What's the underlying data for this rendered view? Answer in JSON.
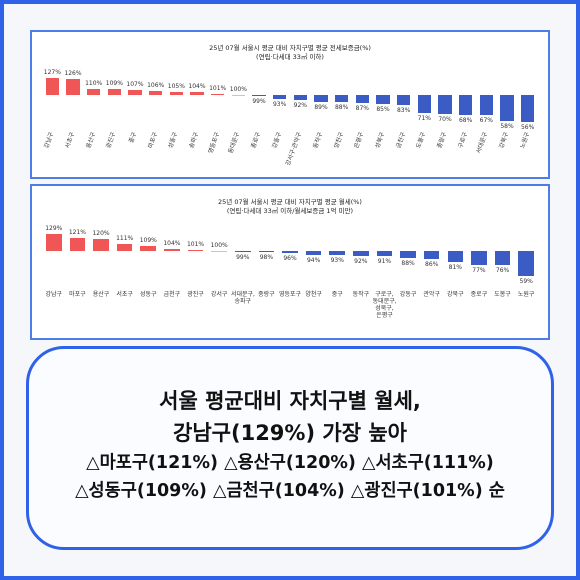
{
  "chart_data": [
    {
      "type": "bar",
      "title": "25년 07월 서울시 평균 대비 자치구별 평균 전세보증금(%)",
      "subtitle": "(연립·다세대 33㎡ 이하)",
      "categories": [
        "강남구",
        "서초구",
        "용산구",
        "광진구",
        "중구",
        "마포구",
        "성동구",
        "송파구",
        "영등포구",
        "동대문구",
        "종로구",
        "강동구",
        "강서구·관악구",
        "동작구",
        "양천구",
        "은평구",
        "성북구",
        "금천구",
        "도봉구",
        "중랑구",
        "구로구",
        "서대문구",
        "강북구",
        "노원구"
      ],
      "values": [
        127,
        126,
        110,
        109,
        107,
        106,
        105,
        104,
        101,
        100,
        99,
        93,
        92,
        89,
        88,
        87,
        85,
        83,
        71,
        70,
        68,
        67,
        58,
        56
      ],
      "value_labels": [
        "127%",
        "126%",
        "110%",
        "109%",
        "107%",
        "106%",
        "105%",
        "104%",
        "101%",
        "100%",
        "99%",
        "93%",
        "92%",
        "89%",
        "88%",
        "87%",
        "85%",
        "83%",
        "71%",
        "70%",
        "68%",
        "67%",
        "58%",
        "56%"
      ],
      "baseline": 100,
      "ylim": [
        50,
        130
      ],
      "color_above": "#f05656",
      "color_below": "#3a5cc4",
      "label_rotation": -70
    },
    {
      "type": "bar",
      "title": "25년 07월 서울시 평균 대비 자치구별 평균 월세(%)",
      "subtitle": "(연립·다세대 33㎡ 이하/월세보증금 1억 미만)",
      "categories": [
        "강남구",
        "마포구",
        "용산구",
        "서초구",
        "성동구",
        "금천구",
        "광진구",
        "강서구",
        "서대문구, 송파구",
        "중랑구",
        "영등포구",
        "양천구",
        "중구",
        "동작구",
        "구로구, 동대문구, 성북구, 은평구",
        "강동구",
        "관악구",
        "강북구",
        "종로구",
        "도봉구",
        "노원구"
      ],
      "values": [
        129,
        121,
        120,
        111,
        109,
        104,
        101,
        100,
        99,
        98,
        96,
        94,
        93,
        92,
        91,
        88,
        86,
        81,
        77,
        76,
        59
      ],
      "value_labels": [
        "129%",
        "121%",
        "120%",
        "111%",
        "109%",
        "104%",
        "101%",
        "100%",
        "99%",
        "98%",
        "96%",
        "94%",
        "93%",
        "92%",
        "91%",
        "88%",
        "86%",
        "81%",
        "77%",
        "76%",
        "59%"
      ],
      "baseline": 100,
      "ylim": [
        50,
        135
      ],
      "color_above": "#f05656",
      "color_below": "#3a5cc4",
      "label_rotation": 0
    }
  ],
  "caption": {
    "headline": [
      "서울 평균대비 자치구별 월세,",
      "강남구(129%) 가장 높아"
    ],
    "details": [
      "△마포구(121%) △용산구(120%) △서초구(111%)",
      "△성동구(109%) △금천구(104%) △광진구(101%) 순"
    ]
  }
}
